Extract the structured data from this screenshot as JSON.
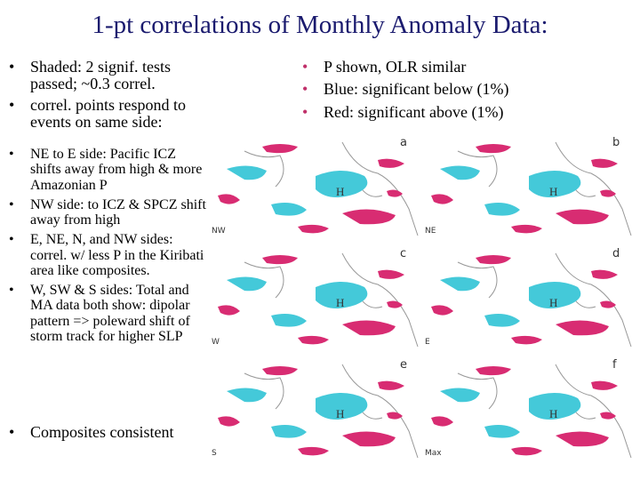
{
  "title": "1-pt correlations of Monthly Anomaly Data:",
  "left_bullets": [
    "Shaded: 2 signif. tests passed; ~0.3 correl.",
    "correl. points respond to events on same side:"
  ],
  "sub_bullets": [
    "NE to E side: Pacific ICZ shifts away from high & more Amazonian P",
    "NW side: to ICZ & SPCZ shift away from high",
    "E, NE, N, and NW sides: correl. w/ less P in the Kiribati area like composites.",
    "W, SW & S sides: Total and MA data both show: dipolar pattern => poleward shift of storm track for higher SLP"
  ],
  "last_bullet": "Composites consistent",
  "right_bullets": [
    "P shown, OLR similar",
    "Blue: significant below (1%)",
    "Red: significant above (1%)"
  ],
  "panels": [
    {
      "letter": "a",
      "corner": "NW",
      "marker": "H"
    },
    {
      "letter": "b",
      "corner": "NE",
      "marker": "H"
    },
    {
      "letter": "c",
      "corner": "W",
      "marker": "H"
    },
    {
      "letter": "d",
      "corner": "E",
      "marker": "H"
    },
    {
      "letter": "e",
      "corner": "S",
      "marker": "H"
    },
    {
      "letter": "f",
      "corner": "Max",
      "marker": "H"
    }
  ]
}
